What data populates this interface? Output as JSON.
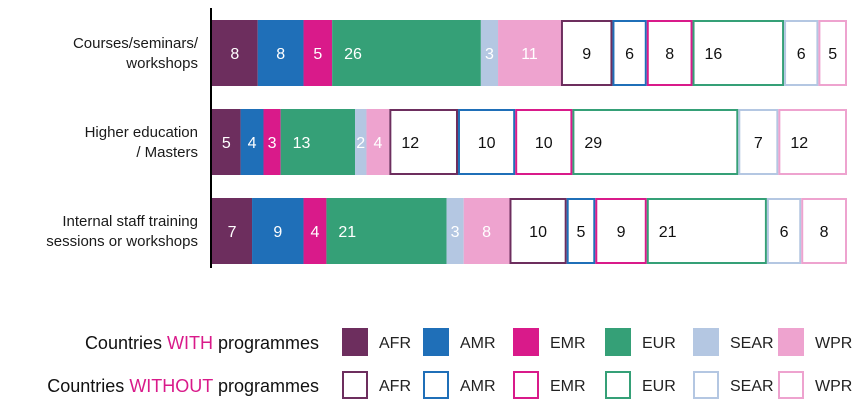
{
  "chart_data": {
    "type": "bar",
    "orientation": "horizontal",
    "stacked": true,
    "categories": [
      "Courses/seminars/ workshops",
      "Higher education / Masters",
      "Internal staff training sessions or workshops"
    ],
    "category_lines": [
      [
        "Courses/seminars/",
        "workshops"
      ],
      [
        "Higher education",
        "/ Masters"
      ],
      [
        "Internal staff training",
        "sessions or workshops"
      ]
    ],
    "series": [
      {
        "name": "AFR",
        "group": "with",
        "color": "#6d2e5e",
        "values": [
          8,
          5,
          7
        ]
      },
      {
        "name": "AMR",
        "group": "with",
        "color": "#1f6fb8",
        "values": [
          8,
          4,
          9
        ]
      },
      {
        "name": "EMR",
        "group": "with",
        "color": "#d91a8a",
        "values": [
          5,
          3,
          4
        ]
      },
      {
        "name": "EUR",
        "group": "with",
        "color": "#35a077",
        "values": [
          26,
          13,
          21
        ]
      },
      {
        "name": "SEAR",
        "group": "with",
        "color": "#b4c7e2",
        "values": [
          3,
          2,
          3
        ]
      },
      {
        "name": "WPR",
        "group": "with",
        "color": "#eea3cf",
        "values": [
          11,
          4,
          8
        ]
      },
      {
        "name": "AFR",
        "group": "without",
        "color": "#6d2e5e",
        "values": [
          9,
          12,
          10
        ]
      },
      {
        "name": "AMR",
        "group": "without",
        "color": "#1f6fb8",
        "values": [
          6,
          10,
          5
        ]
      },
      {
        "name": "EMR",
        "group": "without",
        "color": "#d91a8a",
        "values": [
          8,
          10,
          9
        ]
      },
      {
        "name": "EUR",
        "group": "without",
        "color": "#35a077",
        "values": [
          16,
          29,
          21
        ]
      },
      {
        "name": "SEAR",
        "group": "without",
        "color": "#b4c7e2",
        "values": [
          6,
          7,
          6
        ]
      },
      {
        "name": "WPR",
        "group": "without",
        "color": "#eea3cf",
        "values": [
          5,
          12,
          8
        ]
      }
    ],
    "legend": {
      "placement": "bottom",
      "rows": [
        {
          "parts": [
            "Countries ",
            "WITH",
            " programmes"
          ],
          "group": "with"
        },
        {
          "parts": [
            "Countries ",
            "WITHOUT",
            " programmes"
          ],
          "group": "without"
        }
      ],
      "highlight_color": "#d91a8a",
      "labels": [
        "AFR",
        "AMR",
        "EMR",
        "EUR",
        "SEAR",
        "WPR"
      ]
    }
  }
}
